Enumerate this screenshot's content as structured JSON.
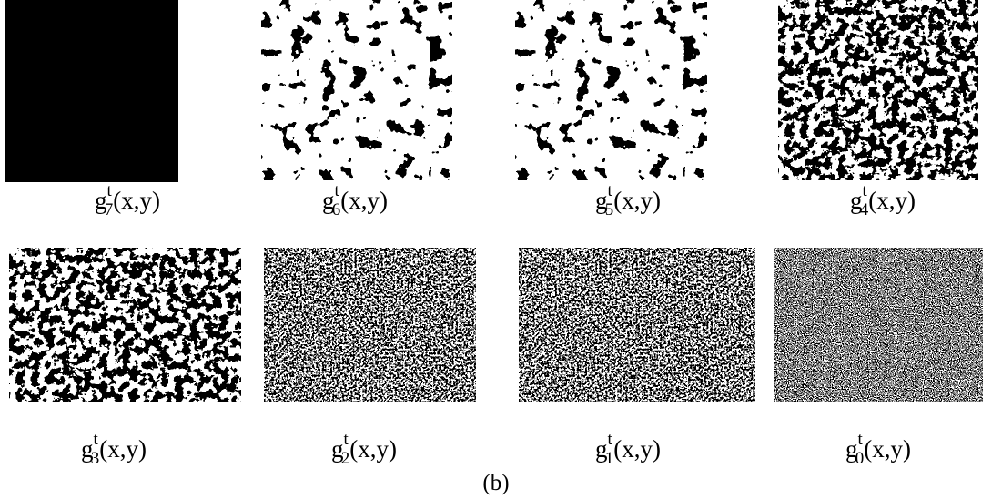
{
  "panels": [
    {
      "base": "g",
      "sup": "t",
      "sub": "7",
      "args": "(x,y)"
    },
    {
      "base": "g",
      "sup": "t",
      "sub": "6",
      "args": "(x,y)"
    },
    {
      "base": "g",
      "sup": "t",
      "sub": "5",
      "args": "(x,y)"
    },
    {
      "base": "g",
      "sup": "t",
      "sub": "4",
      "args": "(x,y)"
    },
    {
      "base": "g",
      "sup": "t",
      "sub": "3",
      "args": "(x,y)"
    },
    {
      "base": "g",
      "sup": "t",
      "sub": "2",
      "args": "(x,y)"
    },
    {
      "base": "g",
      "sup": "t",
      "sub": "1",
      "args": "(x,y)"
    },
    {
      "base": "g",
      "sup": "t",
      "sub": "0",
      "args": "(x,y)"
    }
  ],
  "caption": "(b)"
}
